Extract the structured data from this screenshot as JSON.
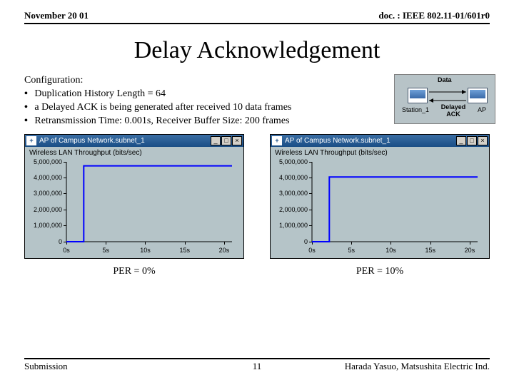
{
  "header": {
    "left": "November 20 01",
    "right": "doc. : IEEE 802.11-01/601r0"
  },
  "title": "Delay Acknowledgement",
  "config": {
    "heading": "Configuration:",
    "items": [
      "Duplication History Length = 64",
      "a Delayed ACK is being generated after received 10 data frames",
      "Retransmission Time: 0.001s, Receiver Buffer Size: 200 frames"
    ]
  },
  "diagram": {
    "label_top": "Data",
    "label_bottom": "Delayed ACK",
    "node_left": "Station_1",
    "node_right": "AP",
    "background_color": "#b7c3c7"
  },
  "charts": {
    "window_title": "AP of Campus Network.subnet_1",
    "subtitle": "Wireless LAN Throughput (bits/sec)",
    "yticks": [
      {
        "v": 5000000,
        "label": "5,000,000"
      },
      {
        "v": 4000000,
        "label": "4,000,000"
      },
      {
        "v": 3000000,
        "label": "3,000,000"
      },
      {
        "v": 2000000,
        "label": "2,000,000"
      },
      {
        "v": 1000000,
        "label": "1,000,000"
      },
      {
        "v": 0,
        "label": "0"
      }
    ],
    "xticks": [
      {
        "v": 0,
        "label": "0s"
      },
      {
        "v": 5,
        "label": "5s"
      },
      {
        "v": 10,
        "label": "10s"
      },
      {
        "v": 15,
        "label": "15s"
      },
      {
        "v": 20,
        "label": "20s"
      }
    ],
    "ylim": [
      0,
      5000000
    ],
    "xlim": [
      0,
      21
    ],
    "left": {
      "caption": "PER = 0%",
      "line_color": "#0000ff",
      "series": [
        {
          "x": 0,
          "y": 0
        },
        {
          "x": 2.2,
          "y": 0
        },
        {
          "x": 2.2,
          "y": 4750000
        },
        {
          "x": 21,
          "y": 4750000
        }
      ]
    },
    "right": {
      "caption": "PER = 10%",
      "line_color": "#0000ff",
      "series": [
        {
          "x": 0,
          "y": 0
        },
        {
          "x": 2.2,
          "y": 0
        },
        {
          "x": 2.2,
          "y": 4050000
        },
        {
          "x": 21,
          "y": 4050000
        }
      ]
    },
    "plot_bg": "#b5c4c8",
    "tick_color": "#000000",
    "line_width": 2
  },
  "footer": {
    "left": "Submission",
    "page": "11",
    "right": "Harada Yasuo, Matsushita Electric Ind."
  }
}
